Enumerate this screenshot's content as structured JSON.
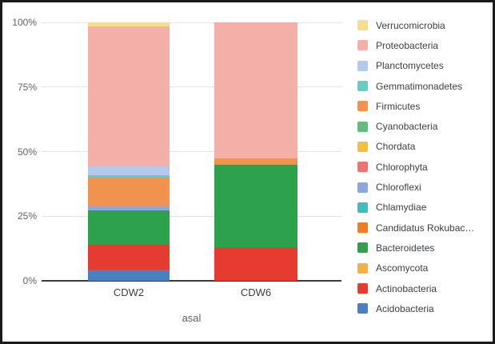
{
  "axes": {
    "x_title": "asal",
    "x_categories": [
      "CDW2",
      "CDW6"
    ],
    "y_ticks": [
      {
        "label": "100%",
        "value": 100
      },
      {
        "label": "75%",
        "value": 75
      },
      {
        "label": "50%",
        "value": 50
      },
      {
        "label": "25%",
        "value": 25
      },
      {
        "label": "0%",
        "value": 0
      }
    ]
  },
  "chart_data": {
    "type": "bar",
    "stacked": true,
    "percent_stacked": true,
    "title": "",
    "xlabel": "asal",
    "ylabel": "",
    "ylim": [
      0,
      100
    ],
    "grid": true,
    "legend_position": "right",
    "categories": [
      "CDW2",
      "CDW6"
    ],
    "series": [
      {
        "label": "Verrucomicrobia",
        "color": "#f7de8c",
        "values": [
          1.5,
          0
        ]
      },
      {
        "label": "Proteobacteria",
        "color": "#f5afa9",
        "values": [
          54.2,
          52.5
        ]
      },
      {
        "label": "Planctomycetes",
        "color": "#b3caee",
        "values": [
          3.3,
          0
        ]
      },
      {
        "label": "Gemmatimonadetes",
        "color": "#65cec4",
        "values": [
          0.8,
          0
        ]
      },
      {
        "label": "Firmicutes",
        "color": "#f1924f",
        "values": [
          11.3,
          2.5
        ]
      },
      {
        "label": "Cyanobacteria",
        "color": "#62bd7a",
        "values": [
          0,
          0
        ]
      },
      {
        "label": "Chordata",
        "color": "#f3c13e",
        "values": [
          0,
          0
        ]
      },
      {
        "label": "Chlorophyta",
        "color": "#ef726c",
        "values": [
          0,
          0
        ]
      },
      {
        "label": "Chloroflexi",
        "color": "#8ba8dc",
        "values": [
          1.7,
          0
        ]
      },
      {
        "label": "Chlamydiae",
        "color": "#3ebec0",
        "values": [
          0,
          0
        ]
      },
      {
        "label": "Candidatus Rokubac…",
        "color": "#ef7d23",
        "values": [
          0,
          0
        ]
      },
      {
        "label": "Bacteroidetes",
        "color": "#2ea14d",
        "values": [
          13.2,
          32
        ]
      },
      {
        "label": "Ascomycota",
        "color": "#f2b43c",
        "values": [
          0,
          0
        ]
      },
      {
        "label": "Actinobacteria",
        "color": "#e63b31",
        "values": [
          9.6,
          13
        ]
      },
      {
        "label": "Acidobacteria",
        "color": "#4c7ec2",
        "values": [
          4.4,
          0
        ]
      }
    ]
  }
}
